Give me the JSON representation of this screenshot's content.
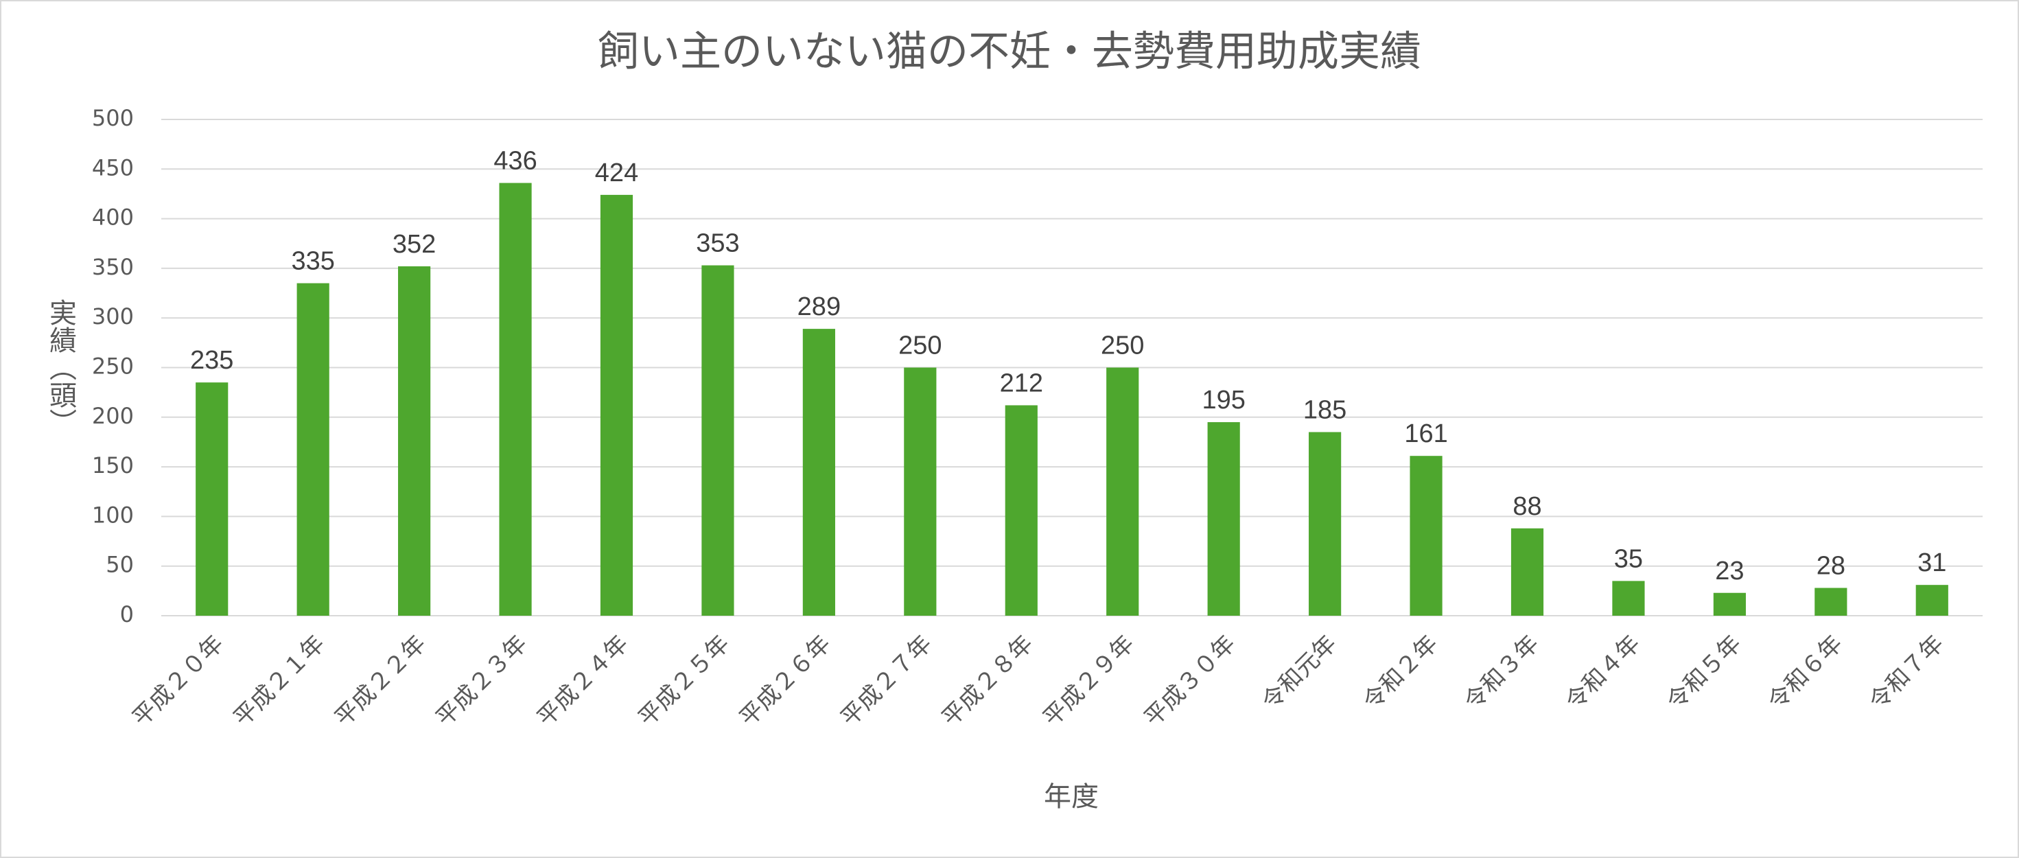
{
  "chart_data": {
    "type": "bar",
    "title": "飼い主のいない猫の不妊・去勢費用助成実績",
    "x_label": "年度",
    "y_label": "実績（頭）",
    "categories": [
      "平成２０年",
      "平成２１年",
      "平成２２年",
      "平成２３年",
      "平成２４年",
      "平成２５年",
      "平成２６年",
      "平成２７年",
      "平成２８年",
      "平成２９年",
      "平成３０年",
      "令和元年",
      "令和２年",
      "令和３年",
      "令和４年",
      "令和５年",
      "令和６年",
      "令和７年"
    ],
    "values": [
      235,
      335,
      352,
      436,
      424,
      353,
      289,
      250,
      212,
      250,
      195,
      185,
      161,
      88,
      35,
      23,
      28,
      31
    ],
    "color": "#4ea72e",
    "ylim": [
      0,
      500
    ],
    "yticks": [
      0,
      50,
      100,
      150,
      200,
      250,
      300,
      350,
      400,
      450,
      500
    ],
    "grid": true
  }
}
